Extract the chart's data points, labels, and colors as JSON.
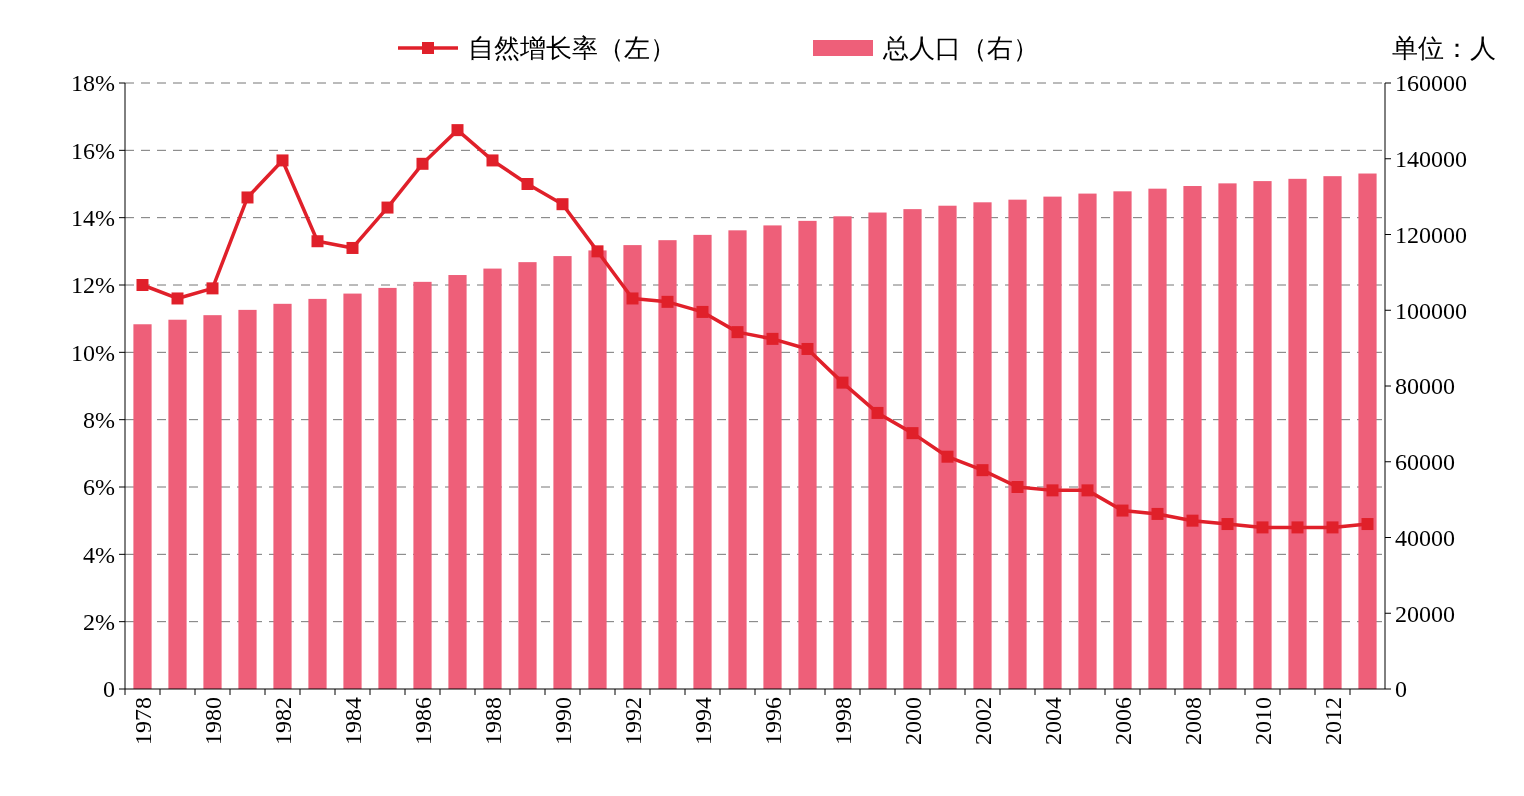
{
  "chart_data": {
    "type": "bar",
    "categories": [
      "1978",
      null,
      "1980",
      null,
      "1982",
      null,
      "1984",
      null,
      "1986",
      null,
      "1988",
      null,
      "1990",
      null,
      "1992",
      null,
      "1994",
      null,
      "1996",
      null,
      "1998",
      null,
      "2000",
      null,
      "2002",
      null,
      "2004",
      null,
      "2006",
      null,
      "2008",
      null,
      "2010",
      null,
      "2012",
      null
    ],
    "series": [
      {
        "name": "自然增长率（左）",
        "type": "line",
        "axis": "y",
        "color": "#e0202a",
        "marker": "square",
        "values": [
          12.0,
          11.6,
          11.9,
          14.6,
          15.7,
          13.3,
          13.1,
          14.3,
          15.6,
          16.6,
          15.7,
          15.0,
          14.4,
          13.0,
          11.6,
          11.5,
          11.2,
          10.6,
          10.4,
          10.1,
          9.1,
          8.2,
          7.6,
          6.9,
          6.5,
          6.0,
          5.9,
          5.9,
          5.3,
          5.2,
          5.0,
          4.9,
          4.8,
          4.8,
          4.8,
          4.9
        ]
      },
      {
        "name": "总人口（右）",
        "axis": "y2",
        "color": "#ee5f79",
        "values": [
          96300,
          97500,
          98700,
          100100,
          101700,
          103000,
          104400,
          105900,
          107500,
          109300,
          111000,
          112700,
          114300,
          115800,
          117200,
          118500,
          119900,
          121100,
          122400,
          123600,
          124800,
          125800,
          126700,
          127600,
          128500,
          129200,
          130000,
          130800,
          131400,
          132100,
          132800,
          133500,
          134100,
          134700,
          135400,
          136100
        ]
      }
    ],
    "ylim": [
      0,
      18
    ],
    "yticks": [
      {
        "value": 0,
        "label": "0"
      },
      {
        "value": 2,
        "label": "2%"
      },
      {
        "value": 4,
        "label": "4%"
      },
      {
        "value": 6,
        "label": "6%"
      },
      {
        "value": 8,
        "label": "8%"
      },
      {
        "value": 10,
        "label": "10%"
      },
      {
        "value": 12,
        "label": "12%"
      },
      {
        "value": 14,
        "label": "14%"
      },
      {
        "value": 16,
        "label": "16%"
      },
      {
        "value": 18,
        "label": "18%"
      }
    ],
    "y2lim": [
      0,
      160000
    ],
    "y2ticks": [
      0,
      20000,
      40000,
      60000,
      80000,
      100000,
      120000,
      140000,
      160000
    ],
    "grid": "y",
    "legend": "top",
    "annotations": [
      "单位：人"
    ]
  }
}
